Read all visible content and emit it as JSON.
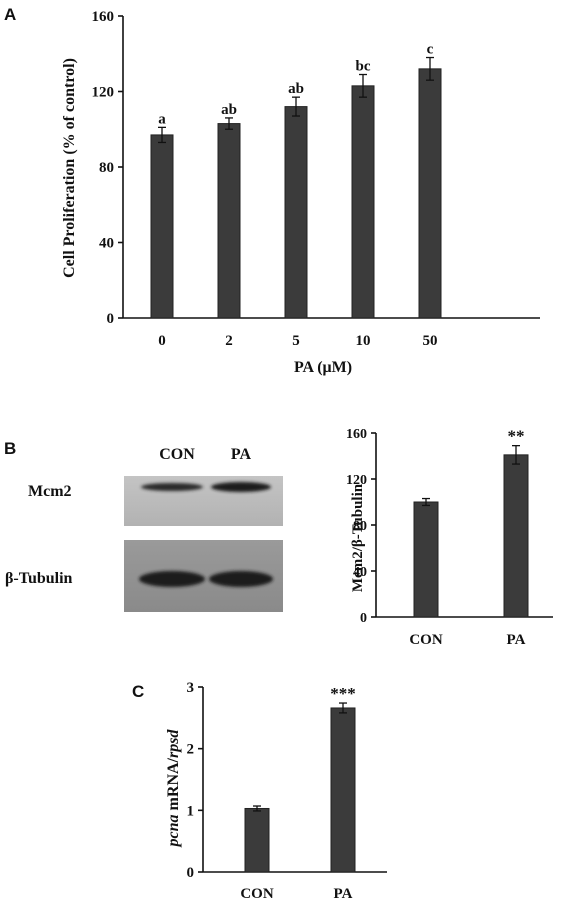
{
  "panels": {
    "A": "A",
    "B": "B",
    "C": "C"
  },
  "blot": {
    "lane_labels": [
      "CON",
      "PA"
    ],
    "rows": [
      {
        "label": "Mcm2",
        "band_intensity": [
          0.55,
          0.85
        ]
      },
      {
        "label": "β-Tubulin",
        "band_intensity": [
          0.95,
          0.95
        ]
      }
    ]
  },
  "colors": {
    "bar": "#3b3b3b",
    "axis": "#111111",
    "blot_bg_top": "#b9b9b9",
    "blot_bg_bottom": "#8f8f8f",
    "band": "#2a2a2a"
  },
  "chart_data": [
    {
      "id": "A",
      "type": "bar",
      "categories": [
        "0",
        "2",
        "5",
        "10",
        "50"
      ],
      "values": [
        97,
        103,
        112,
        123,
        132
      ],
      "errors": [
        4,
        3,
        5,
        6,
        6
      ],
      "annotations": [
        "a",
        "ab",
        "ab",
        "bc",
        "c"
      ],
      "xlabel": "PA (μM)",
      "ylabel": "Cell Proliferation (% of control)",
      "ylim": [
        0,
        160
      ],
      "yticks": [
        "0",
        "40",
        "80",
        "120",
        "160"
      ],
      "ytick_values": [
        0,
        40,
        80,
        120,
        160
      ],
      "grid": false
    },
    {
      "id": "B",
      "type": "bar",
      "categories": [
        "CON",
        "PA"
      ],
      "values": [
        100,
        141
      ],
      "errors": [
        3,
        8
      ],
      "annotations": [
        "",
        "**"
      ],
      "xlabel": "",
      "ylabel": "Mcm2/β-Tubulin",
      "ylim": [
        0,
        160
      ],
      "yticks": [
        "0",
        "40",
        "80",
        "120",
        "160"
      ],
      "ytick_values": [
        0,
        40,
        80,
        120,
        160
      ],
      "grid": false
    },
    {
      "id": "C",
      "type": "bar",
      "categories": [
        "CON",
        "PA"
      ],
      "values": [
        1.03,
        2.66
      ],
      "errors": [
        0.04,
        0.08
      ],
      "annotations": [
        "",
        "***"
      ],
      "xlabel": "",
      "ylabel_italic_1": "pcna",
      "ylabel_plain": " mRNA/",
      "ylabel_italic_2": "rpsd",
      "ylim": [
        0,
        3
      ],
      "yticks": [
        "0",
        "1",
        "2",
        "3"
      ],
      "ytick_values": [
        0,
        1,
        2,
        3
      ],
      "grid": false
    }
  ]
}
